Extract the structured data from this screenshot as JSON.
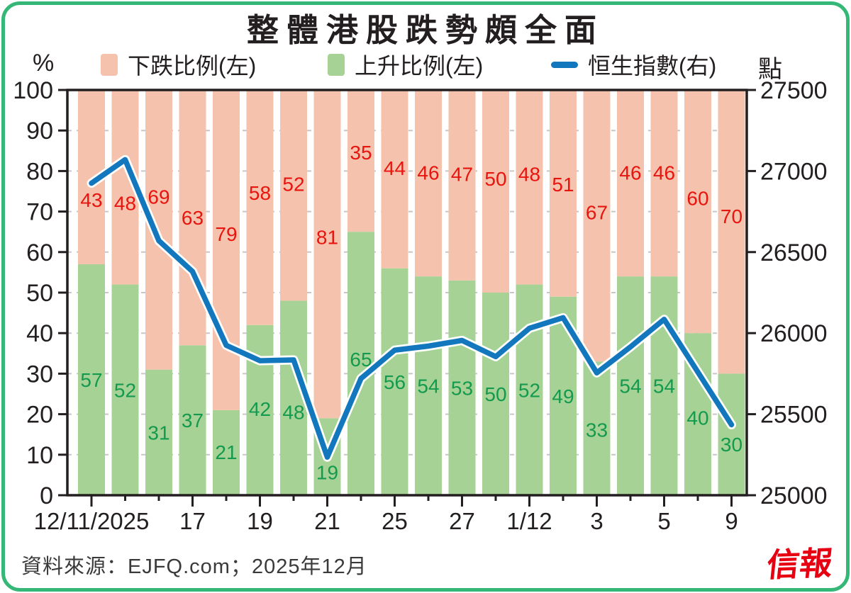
{
  "title": "整體港股跌勢頗全面",
  "legend": {
    "items": [
      {
        "label": "下跌比例(左)",
        "swatch": "square",
        "color": "#f5c3ad"
      },
      {
        "label": "上升比例(左)",
        "swatch": "square",
        "color": "#a6d395"
      },
      {
        "label": "恒生指數(右)",
        "swatch": "line",
        "color": "#1277bc"
      }
    ]
  },
  "axes": {
    "left_unit": "%",
    "right_unit": "點",
    "left_ticks": [
      100,
      90,
      80,
      70,
      60,
      50,
      40,
      30,
      20,
      10,
      0
    ],
    "right_ticks": [
      27500,
      27000,
      26500,
      26000,
      25500,
      25000
    ]
  },
  "chart_data": {
    "type": "combo-stacked-bar-line",
    "bar_count": 20,
    "left_axis_range": [
      0,
      100
    ],
    "right_axis_range": [
      25000,
      27500
    ],
    "grid": "dashed horizontal every 10%",
    "legend_position": "top",
    "x_tick_labels": [
      {
        "bar_index": 0,
        "label": "12/11/2025"
      },
      {
        "bar_index": 3,
        "label": "17"
      },
      {
        "bar_index": 5,
        "label": "19"
      },
      {
        "bar_index": 7,
        "label": "21"
      },
      {
        "bar_index": 9,
        "label": "25"
      },
      {
        "bar_index": 11,
        "label": "27"
      },
      {
        "bar_index": 13,
        "label": "1/12"
      },
      {
        "bar_index": 15,
        "label": "3"
      },
      {
        "bar_index": 17,
        "label": "5"
      },
      {
        "bar_index": 19,
        "label": "9"
      }
    ],
    "series": [
      {
        "name": "下跌比例(左)",
        "role": "stacked-bar-top",
        "axis": "left",
        "color": "#f5c3ad",
        "label_color": "#e8150f",
        "values": [
          43,
          48,
          69,
          63,
          79,
          58,
          52,
          81,
          35,
          44,
          46,
          47,
          50,
          48,
          51,
          67,
          46,
          46,
          60,
          70
        ]
      },
      {
        "name": "上升比例(左)",
        "role": "stacked-bar-bottom",
        "axis": "left",
        "color": "#a6d395",
        "label_color": "#149a4e",
        "values": [
          57,
          52,
          31,
          37,
          21,
          42,
          48,
          19,
          65,
          56,
          54,
          53,
          50,
          52,
          49,
          33,
          54,
          54,
          40,
          30
        ]
      },
      {
        "name": "恒生指數(右)",
        "role": "line",
        "axis": "right",
        "color": "#1277bc",
        "values": [
          26925,
          27070,
          26570,
          26380,
          25925,
          25830,
          25835,
          25235,
          25720,
          25895,
          25920,
          25955,
          25855,
          26030,
          26095,
          25755,
          25915,
          26085,
          25760,
          25435
        ]
      }
    ]
  },
  "source": "資料來源：EJFQ.com；2025年12月",
  "logo": "信報",
  "frame_color": "#35b877"
}
